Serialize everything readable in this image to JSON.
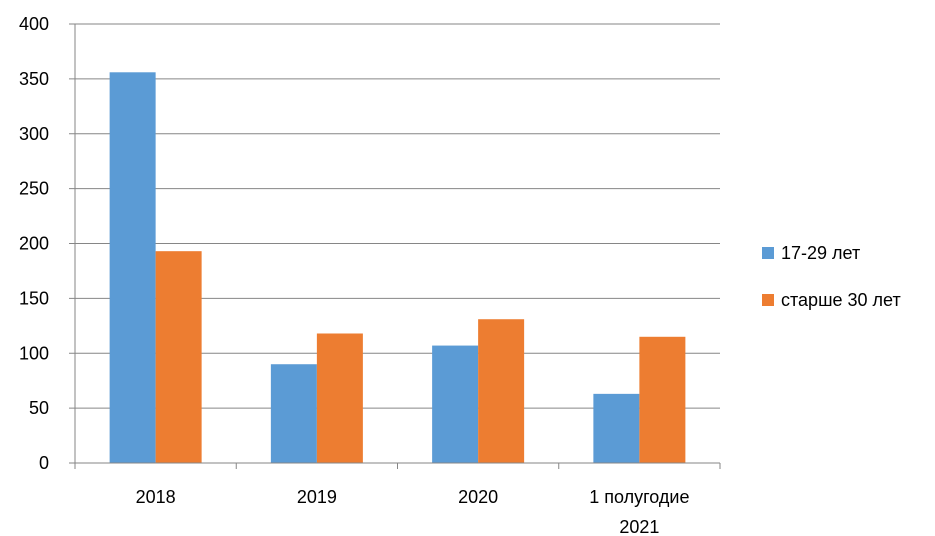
{
  "chart_data": {
    "type": "bar",
    "title": "",
    "xlabel": "",
    "ylabel": "",
    "categories": [
      [
        "2018"
      ],
      [
        "2019"
      ],
      [
        "2020"
      ],
      [
        "1 полугодие",
        "2021"
      ]
    ],
    "series": [
      {
        "name": "17-29 лет",
        "color": "#5B9BD5",
        "values": [
          356,
          90,
          107,
          63
        ]
      },
      {
        "name": "старше 30 лет",
        "color": "#ED7D31",
        "values": [
          193,
          118,
          131,
          115
        ]
      }
    ],
    "ylim": [
      0,
      400
    ],
    "yticks": [
      0,
      50,
      100,
      150,
      200,
      250,
      300,
      350,
      400
    ],
    "grid": true,
    "legend_position": "right"
  }
}
